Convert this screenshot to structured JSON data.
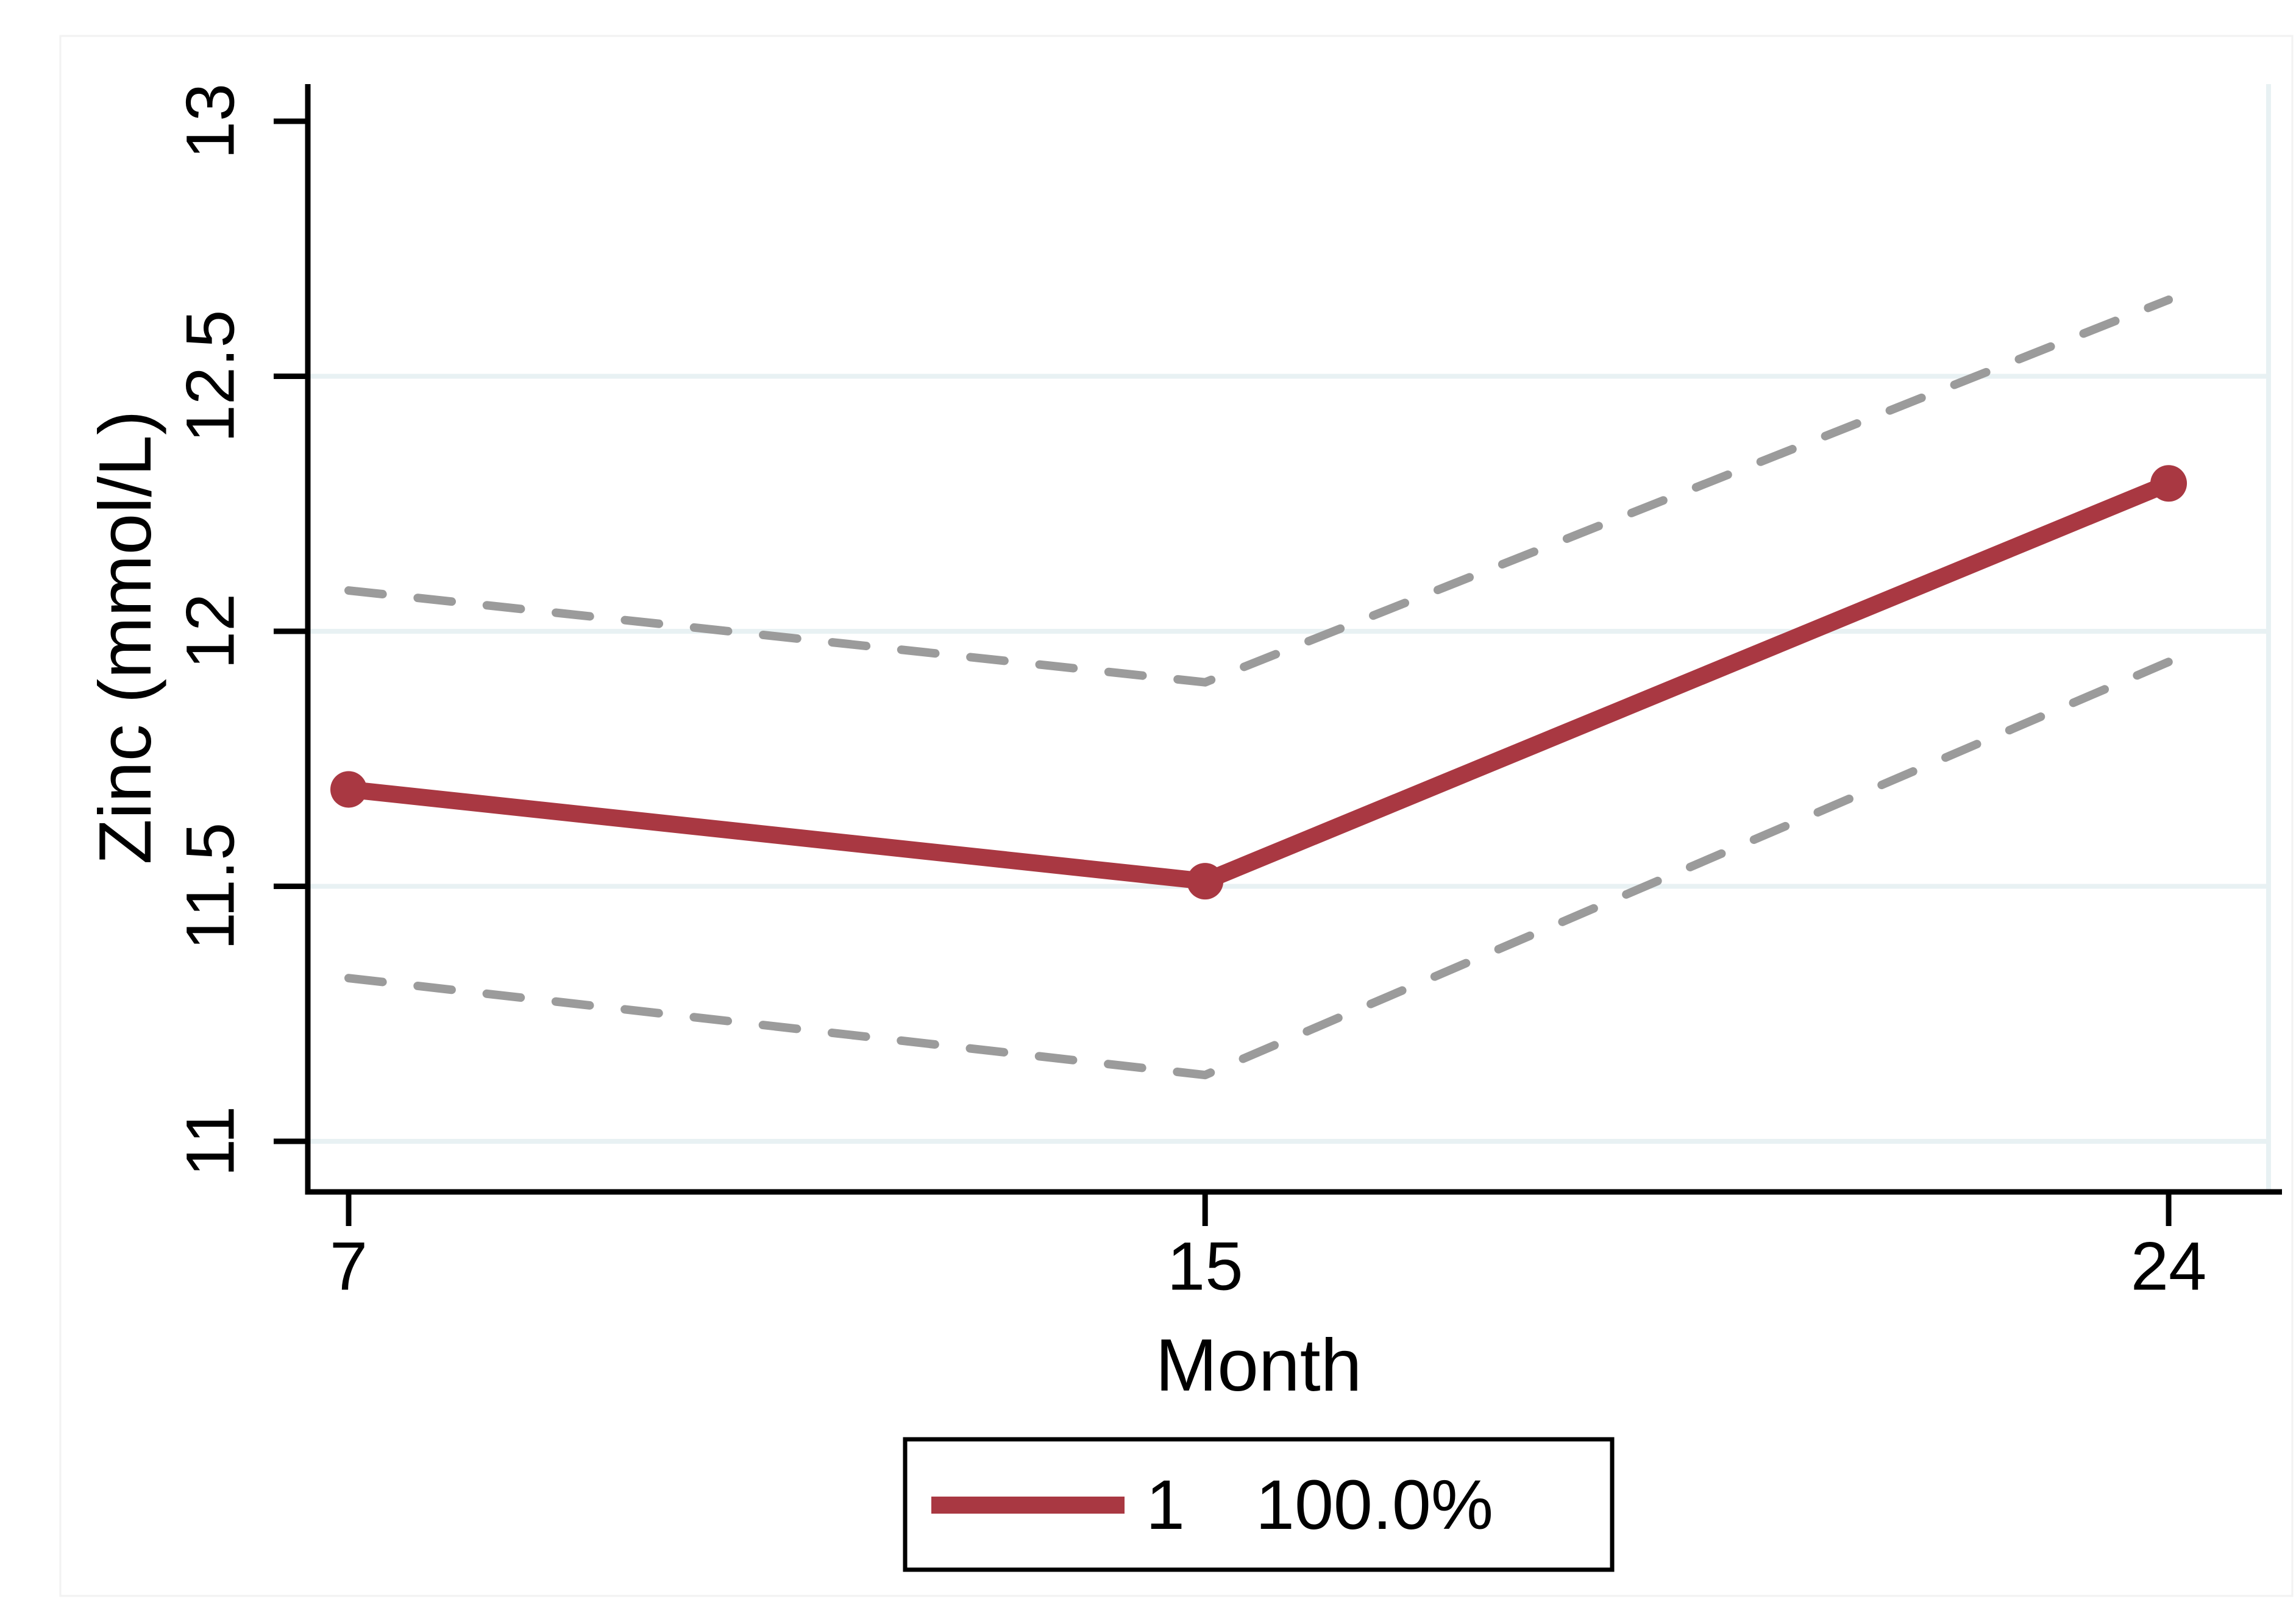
{
  "figure": {
    "background": "#ffffff",
    "frame_color": "#f2f2f2"
  },
  "chart_data": {
    "type": "line",
    "title": "",
    "xlabel": "Month",
    "ylabel": "Zinc (mmol/L)",
    "x_ticks": [
      7,
      15,
      24
    ],
    "x_tick_labels": [
      "7",
      "15",
      "24"
    ],
    "y_ticks": [
      11,
      11.5,
      12,
      12.5,
      13
    ],
    "y_tick_labels": [
      "11",
      "11.5",
      "12",
      "12.5",
      "13"
    ],
    "grid_values": [
      11,
      11.5,
      12,
      12.5
    ],
    "grid": "horizontal",
    "gridline_color": "#E8F1F3",
    "axis_color": "#000000",
    "dashed_color": "#9B9B9B",
    "xlim": [
      7,
      24
    ],
    "ylim": [
      11,
      13
    ],
    "x": [
      7,
      15,
      24
    ],
    "series": [
      {
        "name": "1",
        "role": "mean",
        "line_style": "solid",
        "color": "#A93842",
        "marker": "circle",
        "values": [
          11.69,
          11.51,
          12.29
        ]
      },
      {
        "name": "ci-upper",
        "role": "ci-upper",
        "line_style": "dashed",
        "color": "#9B9B9B",
        "marker": "none",
        "values": [
          12.08,
          11.9,
          12.65
        ]
      },
      {
        "name": "ci-lower",
        "role": "ci-lower",
        "line_style": "dashed",
        "color": "#9B9B9B",
        "marker": "none",
        "values": [
          11.32,
          11.13,
          11.94
        ]
      }
    ],
    "legend": {
      "position": "bottom-center",
      "border_color": "#000000",
      "items": [
        {
          "label": "1",
          "value": "100.0%",
          "swatch_color": "#A93842"
        }
      ]
    }
  }
}
